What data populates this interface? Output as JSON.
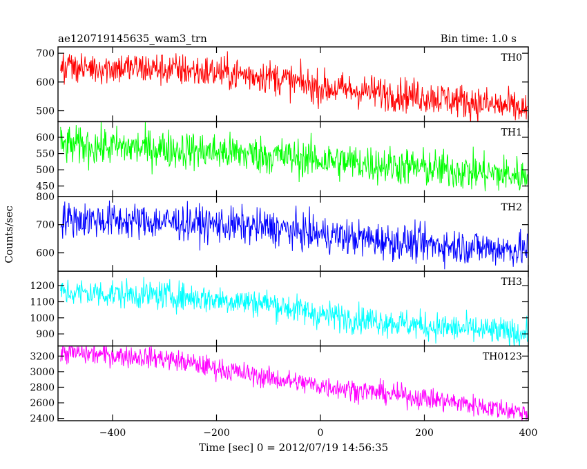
{
  "chart_data": {
    "type": "line",
    "title": "ae120719145635_wam3_trn",
    "subtitle": "Bin time: 1.0 s",
    "xlabel": "Time [sec] 0 = 2012/07/19 14:56:35",
    "ylabel": "Counts/sec",
    "xlim": [
      -505,
      400
    ],
    "x_ticks": [
      -400,
      -200,
      0,
      200,
      400
    ],
    "x_tick_labels": [
      "−400",
      "−200",
      "0",
      "200",
      "400"
    ],
    "grid": false,
    "panels": [
      {
        "name": "TH0",
        "color": "#ff0000",
        "ylim": [
          462,
          722
        ],
        "y_ticks": [
          500,
          600,
          700
        ],
        "y_tick_labels": [
          "500",
          "600",
          "700"
        ],
        "trend": [
          [
            -505,
            655
          ],
          [
            -300,
            645
          ],
          [
            -100,
            620
          ],
          [
            0,
            580
          ],
          [
            200,
            550
          ],
          [
            400,
            505
          ]
        ],
        "noise": 30
      },
      {
        "name": "TH1",
        "color": "#00ff00",
        "ylim": [
          418,
          648
        ],
        "y_ticks": [
          450,
          500,
          550,
          600
        ],
        "y_tick_labels": [
          "450",
          "500",
          "550",
          "600"
        ],
        "trend": [
          [
            -505,
            575
          ],
          [
            -300,
            565
          ],
          [
            -100,
            545
          ],
          [
            0,
            530
          ],
          [
            200,
            505
          ],
          [
            400,
            480
          ]
        ],
        "noise": 30
      },
      {
        "name": "TH2",
        "color": "#0000ff",
        "ylim": [
          535,
          800
        ],
        "y_ticks": [
          600,
          700,
          800
        ],
        "y_tick_labels": [
          "600",
          "700",
          "800"
        ],
        "trend": [
          [
            -505,
            720
          ],
          [
            -300,
            710
          ],
          [
            -100,
            690
          ],
          [
            0,
            665
          ],
          [
            200,
            630
          ],
          [
            400,
            610
          ]
        ],
        "noise": 32
      },
      {
        "name": "TH3",
        "color": "#00ffff",
        "ylim": [
          825,
          1290
        ],
        "y_ticks": [
          900,
          1000,
          1100,
          1200
        ],
        "y_tick_labels": [
          "900",
          "1000",
          "1100",
          "1200"
        ],
        "trend": [
          [
            -505,
            1160
          ],
          [
            -300,
            1140
          ],
          [
            -100,
            1090
          ],
          [
            0,
            1020
          ],
          [
            200,
            950
          ],
          [
            400,
            900
          ]
        ],
        "noise": 45
      },
      {
        "name": "TH0123",
        "color": "#ff00ff",
        "ylim": [
          2370,
          3330
        ],
        "y_ticks": [
          2400,
          2600,
          2800,
          3000,
          3200
        ],
        "y_tick_labels": [
          "2400",
          "2600",
          "2800",
          "3000",
          "3200"
        ],
        "trend": [
          [
            -505,
            3250
          ],
          [
            -300,
            3170
          ],
          [
            -100,
            2920
          ],
          [
            0,
            2820
          ],
          [
            200,
            2660
          ],
          [
            400,
            2470
          ]
        ],
        "noise": 70
      }
    ]
  }
}
